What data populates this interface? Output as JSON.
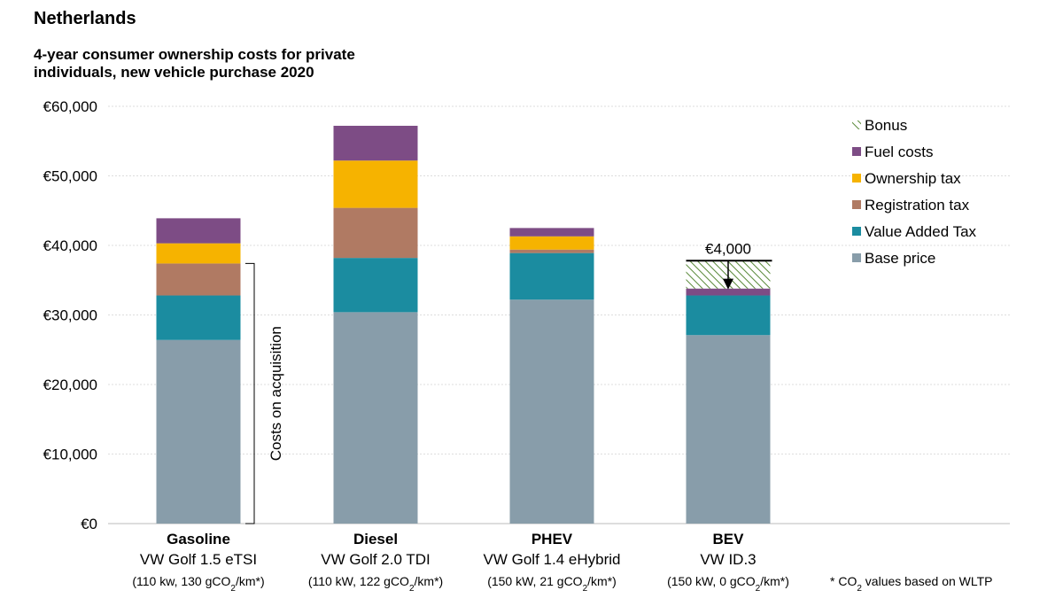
{
  "country": "Netherlands",
  "title_line1": "4-year consumer ownership costs for private",
  "title_line2": "individuals, new vehicle purchase 2020",
  "colors": {
    "Base price": "#889daa",
    "Value Added Tax": "#1b8ca0",
    "Registration tax": "#b07a63",
    "Ownership tax": "#f6b300",
    "Fuel costs": "#7d4c85",
    "Bonus": "#5a8a3a"
  },
  "chart_data": {
    "type": "bar",
    "stacked": true,
    "categories": [
      "Gasoline",
      "Diesel",
      "PHEV",
      "BEV"
    ],
    "category_models": [
      "VW Golf 1.5 eTSI",
      "VW Golf 2.0 TDI",
      "VW Golf 1.4 eHybrid",
      "VW ID.3"
    ],
    "category_specs": [
      [
        "(110 kw, 130 gCO",
        "2",
        "/km*)"
      ],
      [
        "(110 kW, 122 gCO",
        "2",
        "/km*)"
      ],
      [
        "(150 kW, 21 gCO",
        "2",
        "/km*)"
      ],
      [
        "(150 kW, 0 gCO",
        "2",
        "/km*)"
      ]
    ],
    "series": [
      {
        "name": "Base price",
        "values": [
          26400,
          30400,
          32200,
          27100
        ]
      },
      {
        "name": "Value Added Tax",
        "values": [
          6400,
          7800,
          6700,
          5700
        ]
      },
      {
        "name": "Registration tax",
        "values": [
          4600,
          7200,
          500,
          0
        ]
      },
      {
        "name": "Ownership tax",
        "values": [
          2900,
          6800,
          1900,
          0
        ]
      },
      {
        "name": "Fuel costs",
        "values": [
          3600,
          5000,
          1200,
          1000
        ]
      },
      {
        "name": "Bonus",
        "values": [
          0,
          0,
          0,
          4000
        ]
      }
    ],
    "legend": [
      "Bonus",
      "Fuel costs",
      "Ownership tax",
      "Registration tax",
      "Value Added Tax",
      "Base price"
    ],
    "legend_position": "top-right",
    "ylim": [
      0,
      60000
    ],
    "yticks": [
      0,
      10000,
      20000,
      30000,
      40000,
      50000,
      60000
    ],
    "ytick_labels": [
      "€0",
      "€10,000",
      "€20,000",
      "€30,000",
      "€40,000",
      "€50,000",
      "€60,000"
    ],
    "grid": true,
    "annotations": {
      "bonus_label": "€4,000",
      "bracket_label": "Costs on acquisition",
      "bracket_range": [
        0,
        37400
      ]
    },
    "footnote": [
      "* CO",
      "2",
      " values based on WLTP"
    ]
  }
}
